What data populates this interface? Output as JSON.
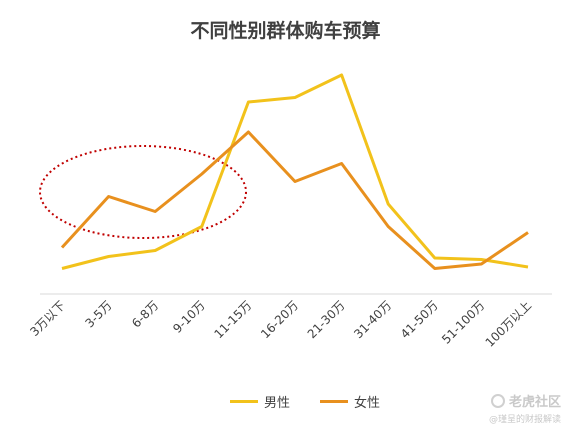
{
  "chart_data": {
    "type": "line",
    "title": "不同性别群体购车预算",
    "categories": [
      "3万以下",
      "3-5万",
      "6-8万",
      "9-10万",
      "11-15万",
      "16-20万",
      "21-30万",
      "31-40万",
      "41-50万",
      "51-100万",
      "100万以上"
    ],
    "series": [
      {
        "name": "男性",
        "color": "#f2c21b",
        "values": [
          8.5,
          12.5,
          14.5,
          22.5,
          64,
          65.5,
          73,
          30,
          12,
          11.5,
          9
        ]
      },
      {
        "name": "女性",
        "color": "#e8901e",
        "values": [
          15.5,
          32.5,
          27.5,
          40,
          54,
          37.5,
          43.5,
          22.5,
          8.5,
          10,
          20.5
        ]
      }
    ],
    "ylim": [
      0,
      80
    ],
    "grid": false,
    "legend": "bottom",
    "annotation_color": "#c00000"
  },
  "watermark": {
    "main": "老虎社区",
    "sub": "@瑾呈的财报解读"
  }
}
